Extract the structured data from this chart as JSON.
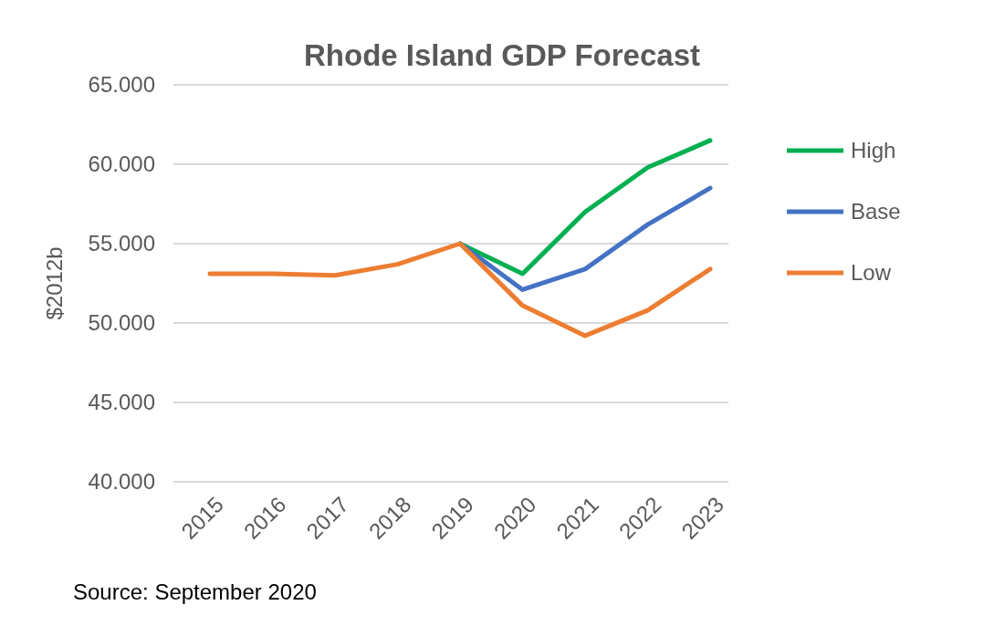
{
  "chart_data": {
    "type": "line",
    "title": "Rhode Island GDP Forecast",
    "ylabel": "$2012b",
    "categories": [
      "2015",
      "2016",
      "2017",
      "2018",
      "2019",
      "2020",
      "2021",
      "2022",
      "2023"
    ],
    "series": [
      {
        "name": "High",
        "color": "#00b050",
        "values": [
          null,
          null,
          null,
          null,
          55.0,
          53.1,
          57.0,
          59.8,
          61.5
        ]
      },
      {
        "name": "Base",
        "color": "#4472c4",
        "values": [
          null,
          null,
          null,
          null,
          55.0,
          52.1,
          53.4,
          56.2,
          58.5
        ]
      },
      {
        "name": "Low",
        "color": "#ed7d31",
        "values": [
          53.1,
          53.1,
          53.0,
          53.7,
          55.0,
          51.1,
          49.2,
          50.8,
          53.4
        ]
      }
    ],
    "ylim": [
      40,
      65
    ],
    "yticks": [
      {
        "value": 40,
        "label": "40.000"
      },
      {
        "value": 45,
        "label": "45.000"
      },
      {
        "value": 50,
        "label": "50.000"
      },
      {
        "value": 55,
        "label": "55.000"
      },
      {
        "value": 60,
        "label": "60.000"
      },
      {
        "value": 65,
        "label": "65.000"
      }
    ],
    "grid": "y",
    "legend": "right",
    "annotations": [
      "Source:  September 2020"
    ]
  }
}
